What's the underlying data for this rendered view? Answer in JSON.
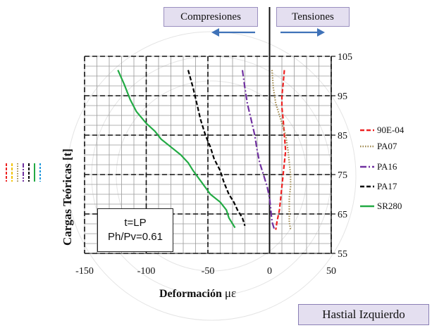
{
  "chart_data": {
    "type": "line",
    "xlabel": "Deformación",
    "xlabel_unit": "με",
    "ylabel": "Cargas Teóricas [t]",
    "xlim": [
      -150,
      50
    ],
    "ylim": [
      55,
      105
    ],
    "x_major_ticks": [
      -150,
      -100,
      -50,
      0,
      50
    ],
    "y_major_ticks": [
      55,
      65,
      75,
      85,
      95,
      105
    ],
    "x_minor_step": 10,
    "y_minor_step": 2.5,
    "grid": true,
    "legend_position": "right",
    "annotations": {
      "compresiones": "Compresiones",
      "tensiones": "Tensiones",
      "param_line1": "t=LP",
      "param_line2": "Ph/Pv=0.61",
      "hastial": "Hastial Izquierdo"
    },
    "series": [
      {
        "name": "90E-04",
        "color": "#ee2222",
        "dash": "6,3",
        "points": [
          [
            12,
            101.5
          ],
          [
            11,
            98
          ],
          [
            10,
            95
          ],
          [
            10,
            92
          ],
          [
            11,
            89
          ],
          [
            12,
            85
          ],
          [
            13,
            81
          ],
          [
            12,
            78
          ],
          [
            11,
            75
          ],
          [
            10,
            72
          ],
          [
            9,
            69
          ],
          [
            8,
            66
          ],
          [
            6,
            63
          ],
          [
            5,
            61
          ]
        ]
      },
      {
        "name": "PA07",
        "color": "#a08a50",
        "dash": "1.5,2",
        "points": [
          [
            2,
            101.5
          ],
          [
            3,
            97
          ],
          [
            5,
            93
          ],
          [
            9,
            89
          ],
          [
            13,
            85
          ],
          [
            15,
            81
          ],
          [
            16,
            78
          ],
          [
            17,
            75
          ],
          [
            17,
            72
          ],
          [
            16,
            69
          ],
          [
            16,
            66
          ],
          [
            16,
            63
          ],
          [
            17,
            61
          ]
        ]
      },
      {
        "name": "PA16",
        "color": "#7030a0",
        "dash": "9,3,2,3",
        "points": [
          [
            -22,
            101.5
          ],
          [
            -20,
            97
          ],
          [
            -18,
            93
          ],
          [
            -15,
            89
          ],
          [
            -12,
            85
          ],
          [
            -10,
            81
          ],
          [
            -8,
            78
          ],
          [
            -5,
            75
          ],
          [
            -2,
            72
          ],
          [
            0,
            69
          ],
          [
            1,
            66
          ],
          [
            2,
            63
          ],
          [
            4,
            61
          ]
        ]
      },
      {
        "name": "PA17",
        "color": "#000000",
        "dash": "6,3",
        "points": [
          [
            -66,
            101.5
          ],
          [
            -62,
            97
          ],
          [
            -59,
            93
          ],
          [
            -56,
            89
          ],
          [
            -52,
            85
          ],
          [
            -48,
            82
          ],
          [
            -45,
            79
          ],
          [
            -40,
            76
          ],
          [
            -37,
            73
          ],
          [
            -33,
            70
          ],
          [
            -29,
            68
          ],
          [
            -26,
            66
          ],
          [
            -22,
            64
          ],
          [
            -20,
            62
          ]
        ]
      },
      {
        "name": "SR280",
        "color": "#22aa44",
        "dash": "",
        "points": [
          [
            -123,
            101.5
          ],
          [
            -118,
            98
          ],
          [
            -113,
            94
          ],
          [
            -108,
            91
          ],
          [
            -100,
            88
          ],
          [
            -93,
            86
          ],
          [
            -88,
            84
          ],
          [
            -80,
            82
          ],
          [
            -72,
            80
          ],
          [
            -66,
            78
          ],
          [
            -62,
            76
          ],
          [
            -55,
            73
          ],
          [
            -48,
            70
          ],
          [
            -40,
            68
          ],
          [
            -35,
            66
          ],
          [
            -33,
            64
          ],
          [
            -28,
            61.5
          ]
        ]
      }
    ]
  }
}
